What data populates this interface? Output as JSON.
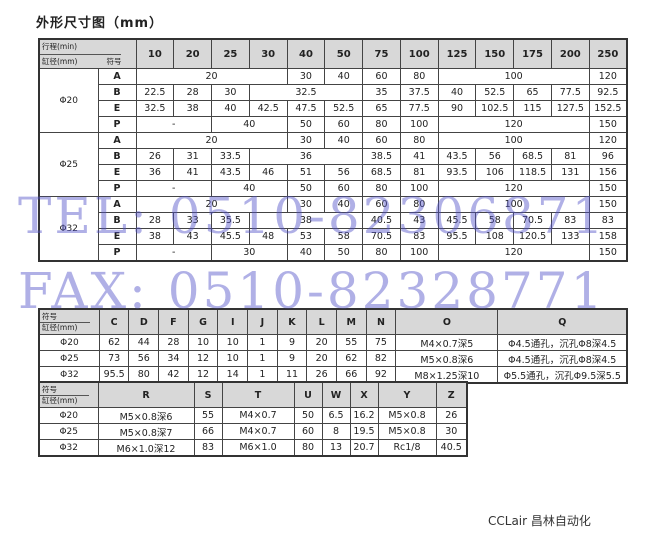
{
  "title": "外形尺寸图（mm）",
  "table1": {
    "corner": {
      "top": "行程(min)",
      "bottom_left": "缸径(mm)",
      "bottom_right": "符号"
    },
    "strokes": [
      "10",
      "20",
      "25",
      "30",
      "40",
      "50",
      "75",
      "100",
      "125",
      "150",
      "175",
      "200",
      "250"
    ],
    "groups": [
      {
        "bore": "Φ20",
        "rows": [
          {
            "sym": "A",
            "cells": [
              {
                "v": "20",
                "span": 4
              },
              {
                "v": "30"
              },
              {
                "v": "40"
              },
              {
                "v": "60"
              },
              {
                "v": "80"
              },
              {
                "v": "100",
                "span": 4
              },
              {
                "v": "120"
              }
            ]
          },
          {
            "sym": "B",
            "cells": [
              {
                "v": "22.5"
              },
              {
                "v": "28"
              },
              {
                "v": "30"
              },
              {
                "v": "32.5",
                "span": 3
              },
              {
                "v": "35"
              },
              {
                "v": "37.5"
              },
              {
                "v": "40"
              },
              {
                "v": "52.5"
              },
              {
                "v": "65"
              },
              {
                "v": "77.5"
              },
              {
                "v": "92.5"
              }
            ]
          },
          {
            "sym": "E",
            "cells": [
              {
                "v": "32.5"
              },
              {
                "v": "38"
              },
              {
                "v": "40"
              },
              {
                "v": "42.5"
              },
              {
                "v": "47.5"
              },
              {
                "v": "52.5"
              },
              {
                "v": "65"
              },
              {
                "v": "77.5"
              },
              {
                "v": "90"
              },
              {
                "v": "102.5"
              },
              {
                "v": "115"
              },
              {
                "v": "127.5"
              },
              {
                "v": "152.5"
              }
            ]
          },
          {
            "sym": "P",
            "cells": [
              {
                "v": "-",
                "span": 2
              },
              {
                "v": "40",
                "span": 2
              },
              {
                "v": "50"
              },
              {
                "v": "60"
              },
              {
                "v": "80"
              },
              {
                "v": "100"
              },
              {
                "v": "120",
                "span": 4
              },
              {
                "v": "150"
              }
            ]
          }
        ]
      },
      {
        "bore": "Φ25",
        "rows": [
          {
            "sym": "A",
            "cells": [
              {
                "v": "20",
                "span": 4
              },
              {
                "v": "30"
              },
              {
                "v": "40"
              },
              {
                "v": "60"
              },
              {
                "v": "80"
              },
              {
                "v": "100",
                "span": 4
              },
              {
                "v": "120"
              }
            ]
          },
          {
            "sym": "B",
            "cells": [
              {
                "v": "26"
              },
              {
                "v": "31"
              },
              {
                "v": "33.5"
              },
              {
                "v": "36",
                "span": 3
              },
              {
                "v": "38.5"
              },
              {
                "v": "41"
              },
              {
                "v": "43.5"
              },
              {
                "v": "56"
              },
              {
                "v": "68.5"
              },
              {
                "v": "81"
              },
              {
                "v": "96"
              }
            ]
          },
          {
            "sym": "E",
            "cells": [
              {
                "v": "36"
              },
              {
                "v": "41"
              },
              {
                "v": "43.5"
              },
              {
                "v": "46"
              },
              {
                "v": "51"
              },
              {
                "v": "56"
              },
              {
                "v": "68.5"
              },
              {
                "v": "81"
              },
              {
                "v": "93.5"
              },
              {
                "v": "106"
              },
              {
                "v": "118.5"
              },
              {
                "v": "131"
              },
              {
                "v": "156"
              }
            ]
          },
          {
            "sym": "P",
            "cells": [
              {
                "v": "-",
                "span": 2
              },
              {
                "v": "40",
                "span": 2
              },
              {
                "v": "50"
              },
              {
                "v": "60"
              },
              {
                "v": "80"
              },
              {
                "v": "100"
              },
              {
                "v": "120",
                "span": 4
              },
              {
                "v": "150"
              }
            ]
          }
        ]
      },
      {
        "bore": "Φ32",
        "rows": [
          {
            "sym": "A",
            "cells": [
              {
                "v": "20",
                "span": 4
              },
              {
                "v": "30"
              },
              {
                "v": "40"
              },
              {
                "v": "60"
              },
              {
                "v": "80"
              },
              {
                "v": "100",
                "span": 4
              },
              {
                "v": "150"
              }
            ]
          },
          {
            "sym": "B",
            "cells": [
              {
                "v": "28"
              },
              {
                "v": "33"
              },
              {
                "v": "35.5"
              },
              {
                "v": "38",
                "span": 3
              },
              {
                "v": "40.5"
              },
              {
                "v": "43"
              },
              {
                "v": "45.5"
              },
              {
                "v": "58"
              },
              {
                "v": "70.5"
              },
              {
                "v": "83"
              },
              {
                "v": "83"
              }
            ]
          },
          {
            "sym": "E",
            "cells": [
              {
                "v": "38"
              },
              {
                "v": "43"
              },
              {
                "v": "45.5"
              },
              {
                "v": "48"
              },
              {
                "v": "53"
              },
              {
                "v": "58"
              },
              {
                "v": "70.5"
              },
              {
                "v": "83"
              },
              {
                "v": "95.5"
              },
              {
                "v": "108"
              },
              {
                "v": "120.5"
              },
              {
                "v": "133"
              },
              {
                "v": "158"
              }
            ]
          },
          {
            "sym": "P",
            "cells": [
              {
                "v": "-",
                "span": 2
              },
              {
                "v": "30",
                "span": 2
              },
              {
                "v": "40"
              },
              {
                "v": "50"
              },
              {
                "v": "80"
              },
              {
                "v": "100"
              },
              {
                "v": "120",
                "span": 4
              },
              {
                "v": "150"
              }
            ]
          }
        ]
      }
    ]
  },
  "table2": {
    "corner": {
      "top": "符号",
      "bottom": "缸径(mm)"
    },
    "headers": [
      "C",
      "D",
      "F",
      "G",
      "I",
      "J",
      "K",
      "L",
      "M",
      "N",
      "O",
      "Q"
    ],
    "rows": [
      {
        "bore": "Φ20",
        "cells": [
          "62",
          "44",
          "28",
          "10",
          "10",
          "1",
          "9",
          "20",
          "55",
          "75",
          "M4×0.7深5",
          "Φ4.5通孔，沉孔Φ8深4.5"
        ]
      },
      {
        "bore": "Φ25",
        "cells": [
          "73",
          "56",
          "34",
          "12",
          "10",
          "1",
          "9",
          "20",
          "62",
          "82",
          "M5×0.8深6",
          "Φ4.5通孔，沉孔Φ8深4.5"
        ]
      },
      {
        "bore": "Φ32",
        "cells": [
          "95.5",
          "80",
          "42",
          "12",
          "14",
          "1",
          "11",
          "26",
          "66",
          "92",
          "M8×1.25深10",
          "Φ5.5通孔，沉孔Φ9.5深5.5"
        ]
      }
    ]
  },
  "table3": {
    "corner": {
      "top": "符号",
      "bottom": "缸径(mm)"
    },
    "headers": [
      "R",
      "S",
      "T",
      "U",
      "W",
      "X",
      "Y",
      "Z"
    ],
    "rows": [
      {
        "bore": "Φ20",
        "cells": [
          "M5×0.8深6",
          "55",
          "M4×0.7",
          "50",
          "6.5",
          "16.2",
          "M5×0.8",
          "26"
        ]
      },
      {
        "bore": "Φ25",
        "cells": [
          "M5×0.8深7",
          "66",
          "M4×0.7",
          "60",
          "8",
          "19.5",
          "M5×0.8",
          "30"
        ]
      },
      {
        "bore": "Φ32",
        "cells": [
          "M6×1.0深12",
          "83",
          "M6×1.0",
          "80",
          "13",
          "20.7",
          "Rc1/8",
          "40.5"
        ]
      }
    ]
  },
  "watermark": {
    "tel": "TEL: 0510-82306871",
    "fax": "FAX: 0510-82328771",
    "color": "#5050c8"
  },
  "footer": "CCLair 昌林自动化"
}
